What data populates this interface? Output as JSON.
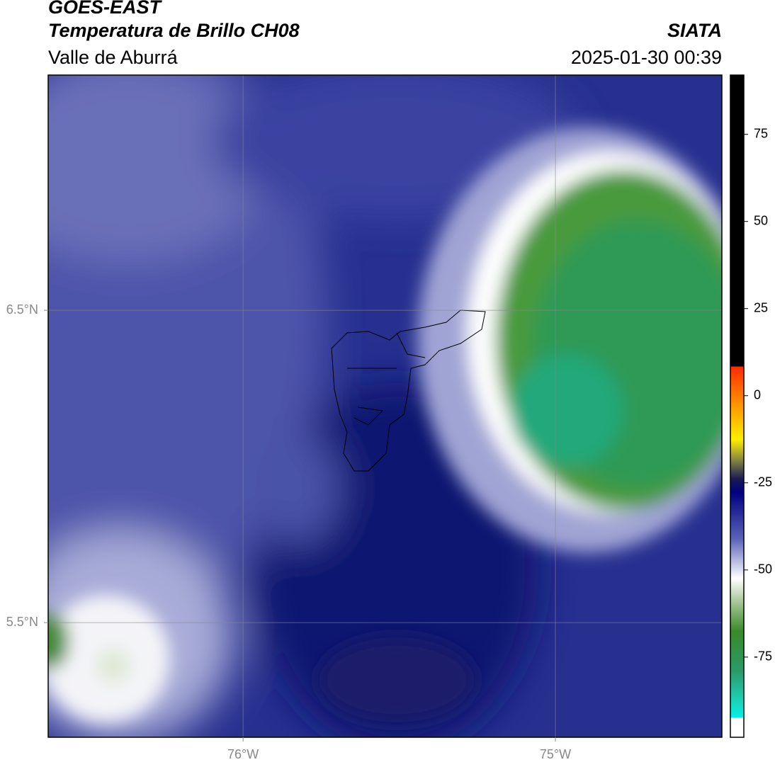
{
  "header": {
    "line1": "GOES-EAST",
    "line2": "Temperatura de Brillo CH08",
    "subtitle": "Valle de Aburrá",
    "source": "SIATA",
    "datetime": "2025-01-30 00:39"
  },
  "map": {
    "xlim": [
      -76.624,
      -74.467
    ],
    "ylim": [
      5.133,
      7.253
    ],
    "xticks": [
      {
        "value": -76,
        "label": "76°W"
      },
      {
        "value": -75,
        "label": "75°W"
      }
    ],
    "yticks": [
      {
        "value": 6.5,
        "label": "6.5°N"
      },
      {
        "value": 5.5,
        "label": "5.5°N"
      }
    ],
    "grid": true
  },
  "colorbar": {
    "lim": [
      -98,
      92
    ],
    "ticks": [
      75,
      50,
      25,
      0,
      -25,
      -50,
      -75
    ]
  }
}
